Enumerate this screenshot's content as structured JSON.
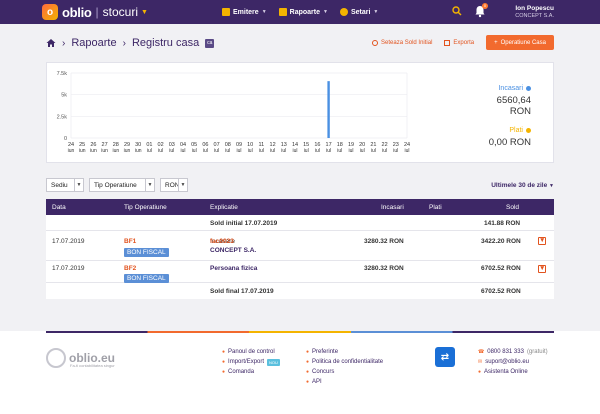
{
  "nav": {
    "brand": "oblio",
    "sub": "stocuri",
    "items": [
      {
        "label": "Emitere"
      },
      {
        "label": "Rapoarte"
      },
      {
        "label": "Setari"
      }
    ],
    "notifications": "0",
    "user_name": "Ion Popescu",
    "user_company": "CONCEPT S.A."
  },
  "breadcrumb": {
    "level1": "Rapoarte",
    "level2": "Registru casa",
    "badge": "ca"
  },
  "actions": {
    "initial_balance": "Seteaza Sold Initial",
    "export": "Exporta",
    "add": "Operatiune Casa"
  },
  "chart_data": {
    "type": "bar",
    "categories": [
      "24 iun",
      "25 iun",
      "26 iun",
      "27 iun",
      "28 iun",
      "29 iun",
      "30 iun",
      "01 iul",
      "02 iul",
      "03 iul",
      "04 iul",
      "05 iul",
      "06 iul",
      "07 iul",
      "08 iul",
      "09 iul",
      "10 iul",
      "11 iul",
      "12 iul",
      "13 iul",
      "14 iul",
      "15 iul",
      "16 iul",
      "17 iul",
      "18 iul",
      "19 iul",
      "20 iul",
      "21 iul",
      "22 iul",
      "23 iul",
      "24 iul"
    ],
    "x_day": [
      "24",
      "25",
      "26",
      "27",
      "28",
      "29",
      "30",
      "01",
      "02",
      "03",
      "04",
      "05",
      "06",
      "07",
      "08",
      "09",
      "10",
      "11",
      "12",
      "13",
      "14",
      "15",
      "16",
      "17",
      "18",
      "19",
      "20",
      "21",
      "22",
      "23",
      "24"
    ],
    "x_month": [
      "iun",
      "iun",
      "iun",
      "iun",
      "iun",
      "iun",
      "iun",
      "iul",
      "iul",
      "iul",
      "iul",
      "iul",
      "iul",
      "iul",
      "iul",
      "iul",
      "iul",
      "iul",
      "iul",
      "iul",
      "iul",
      "iul",
      "iul",
      "iul",
      "iul",
      "iul",
      "iul",
      "iul",
      "iul",
      "iul",
      "iul"
    ],
    "series": [
      {
        "name": "Incasari",
        "values": [
          0,
          0,
          0,
          0,
          0,
          0,
          0,
          0,
          0,
          0,
          0,
          0,
          0,
          0,
          0,
          0,
          0,
          0,
          0,
          0,
          0,
          0,
          0,
          6560.64,
          0,
          0,
          0,
          0,
          0,
          0,
          0
        ]
      },
      {
        "name": "Plati",
        "values": [
          0,
          0,
          0,
          0,
          0,
          0,
          0,
          0,
          0,
          0,
          0,
          0,
          0,
          0,
          0,
          0,
          0,
          0,
          0,
          0,
          0,
          0,
          0,
          0,
          0,
          0,
          0,
          0,
          0,
          0,
          0
        ]
      }
    ],
    "yticks": [
      "0",
      "2.5k",
      "5k",
      "7.5k"
    ],
    "ylim": [
      0,
      7500
    ],
    "grid": true
  },
  "legend": {
    "incasari_label": "Incasari",
    "incasari_value": "6560,64 RON",
    "plati_label": "Plati",
    "plati_value": "0,00 RON",
    "incasari_color": "#4a90e2",
    "plati_color": "#f4b400"
  },
  "filters": {
    "sediu": "Sediu",
    "tip": "Tip Operatiune",
    "moneda": "RON",
    "period": "Ultimele 30 de zile"
  },
  "table": {
    "headers": {
      "data": "Data",
      "tip": "Tip Operatiune",
      "explicatie": "Explicatie",
      "incasari": "Incasari",
      "plati": "Plati",
      "sold": "Sold"
    },
    "sold_initial": {
      "label": "Sold initial 17.07.2019",
      "sold": "141.88 RON"
    },
    "rows": [
      {
        "date": "17.07.2019",
        "doc": "BF1",
        "tag": "BON FISCAL",
        "expl_prefix": "Incasare ",
        "expl_doc": "fac0023",
        "expl_line2": "CONCEPT S.A.",
        "incasari": "3280.32 RON",
        "plati": "",
        "sold": "3422.20 RON"
      },
      {
        "date": "17.07.2019",
        "doc": "BF2",
        "tag": "BON FISCAL",
        "expl_line1": "Persoana fizica",
        "incasari": "3280.32 RON",
        "plati": "",
        "sold": "6702.52 RON"
      }
    ],
    "sold_final": {
      "label": "Sold final 17.07.2019",
      "sold": "6702.52 RON"
    }
  },
  "footer": {
    "brand": "oblio.eu",
    "tagline": "Fa-ti contabilitatea singur",
    "col1": [
      "Panoul de control",
      "Import/Export",
      "Comanda"
    ],
    "new_badge": "NOU",
    "col2": [
      "Preferinte",
      "Politica de confidentialitate",
      "Concurs",
      "API"
    ],
    "phone": "0800 831 333",
    "phone_note": "(gratuit)",
    "email": "suport@oblio.eu",
    "chat": "Asistenta Online"
  }
}
